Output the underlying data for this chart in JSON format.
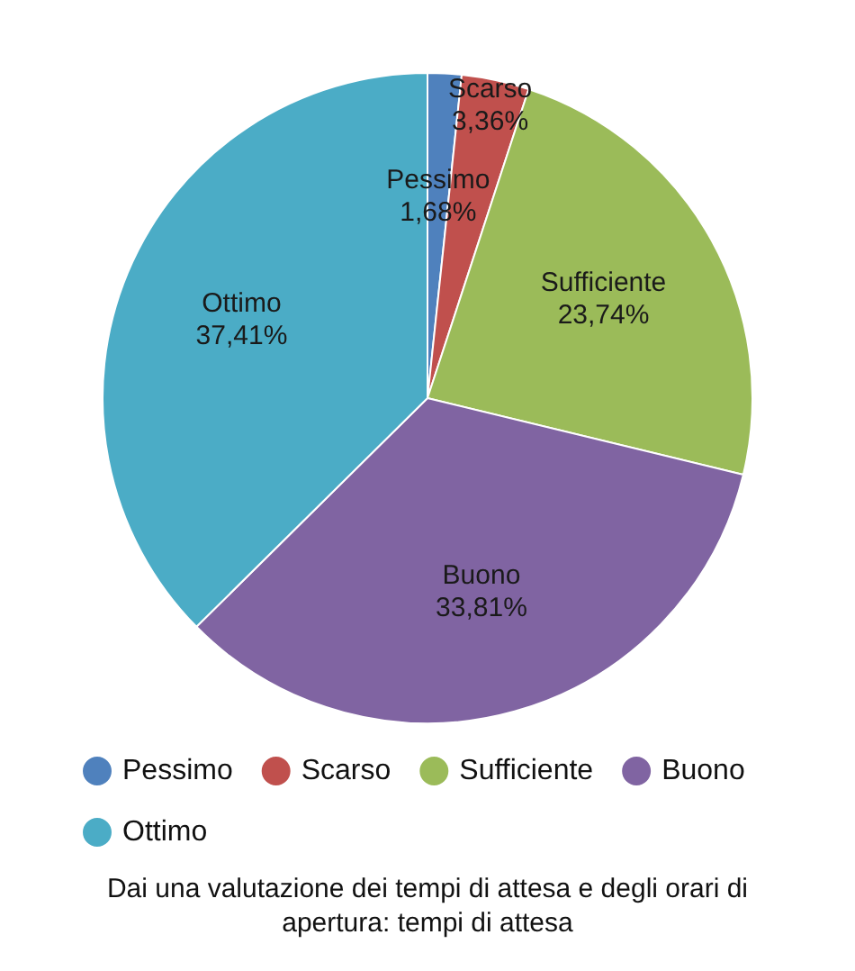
{
  "chart_data": {
    "type": "pie",
    "title": "Dai una valutazione dei tempi di attesa e degli orari di apertura: tempi di attesa",
    "categories": [
      "Pessimo",
      "Scarso",
      "Sufficiente",
      "Buono",
      "Ottimo"
    ],
    "values": [
      1.68,
      3.36,
      23.74,
      33.81,
      37.41
    ],
    "value_labels": [
      "1,68%",
      "3,36%",
      "23,74%",
      "33,81%",
      "37,41%"
    ],
    "colors": [
      "#4f81bd",
      "#c0504d",
      "#9bbb59",
      "#8064a2",
      "#4bacc6"
    ],
    "legend": "bottom"
  }
}
